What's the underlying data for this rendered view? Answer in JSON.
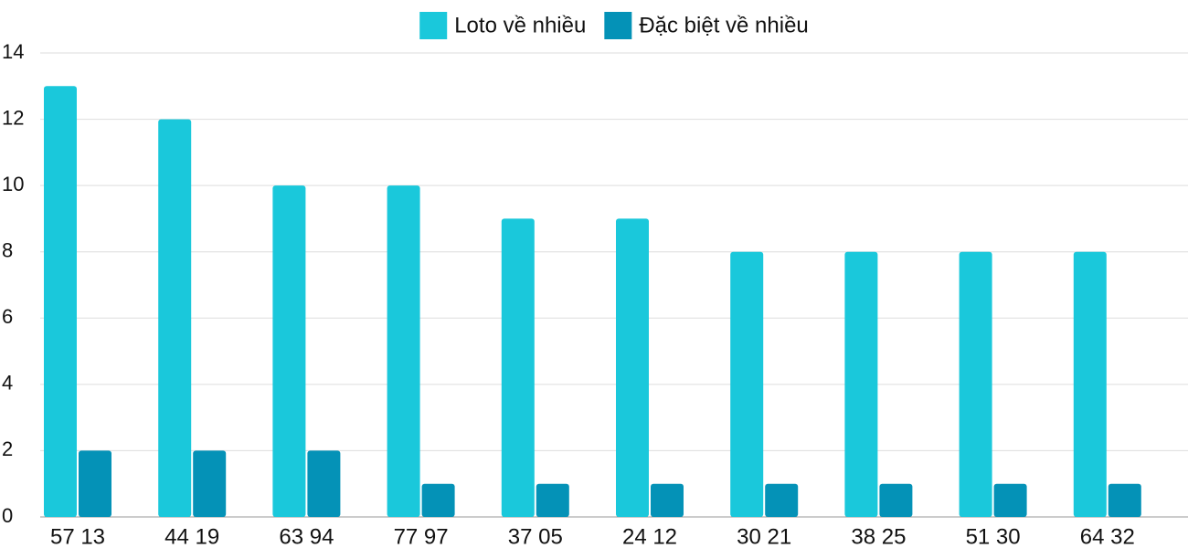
{
  "chart_data": {
    "type": "bar",
    "categories": [
      "57 13",
      "44 19",
      "63 94",
      "77 97",
      "37 05",
      "24 12",
      "30 21",
      "38 25",
      "51 30",
      "64 32"
    ],
    "series": [
      {
        "name": "Loto về nhiều",
        "color": "#1ac8db",
        "values": [
          13,
          12,
          10,
          10,
          9,
          9,
          8,
          8,
          8,
          8
        ]
      },
      {
        "name": "Đặc biệt về nhiều",
        "color": "#0492b7",
        "values": [
          2,
          2,
          2,
          1,
          1,
          1,
          1,
          1,
          1,
          1
        ]
      }
    ],
    "ylim": [
      0,
      14
    ],
    "yticks": [
      0,
      2,
      4,
      6,
      8,
      10,
      12,
      14
    ],
    "grid": true,
    "legend": "top"
  }
}
